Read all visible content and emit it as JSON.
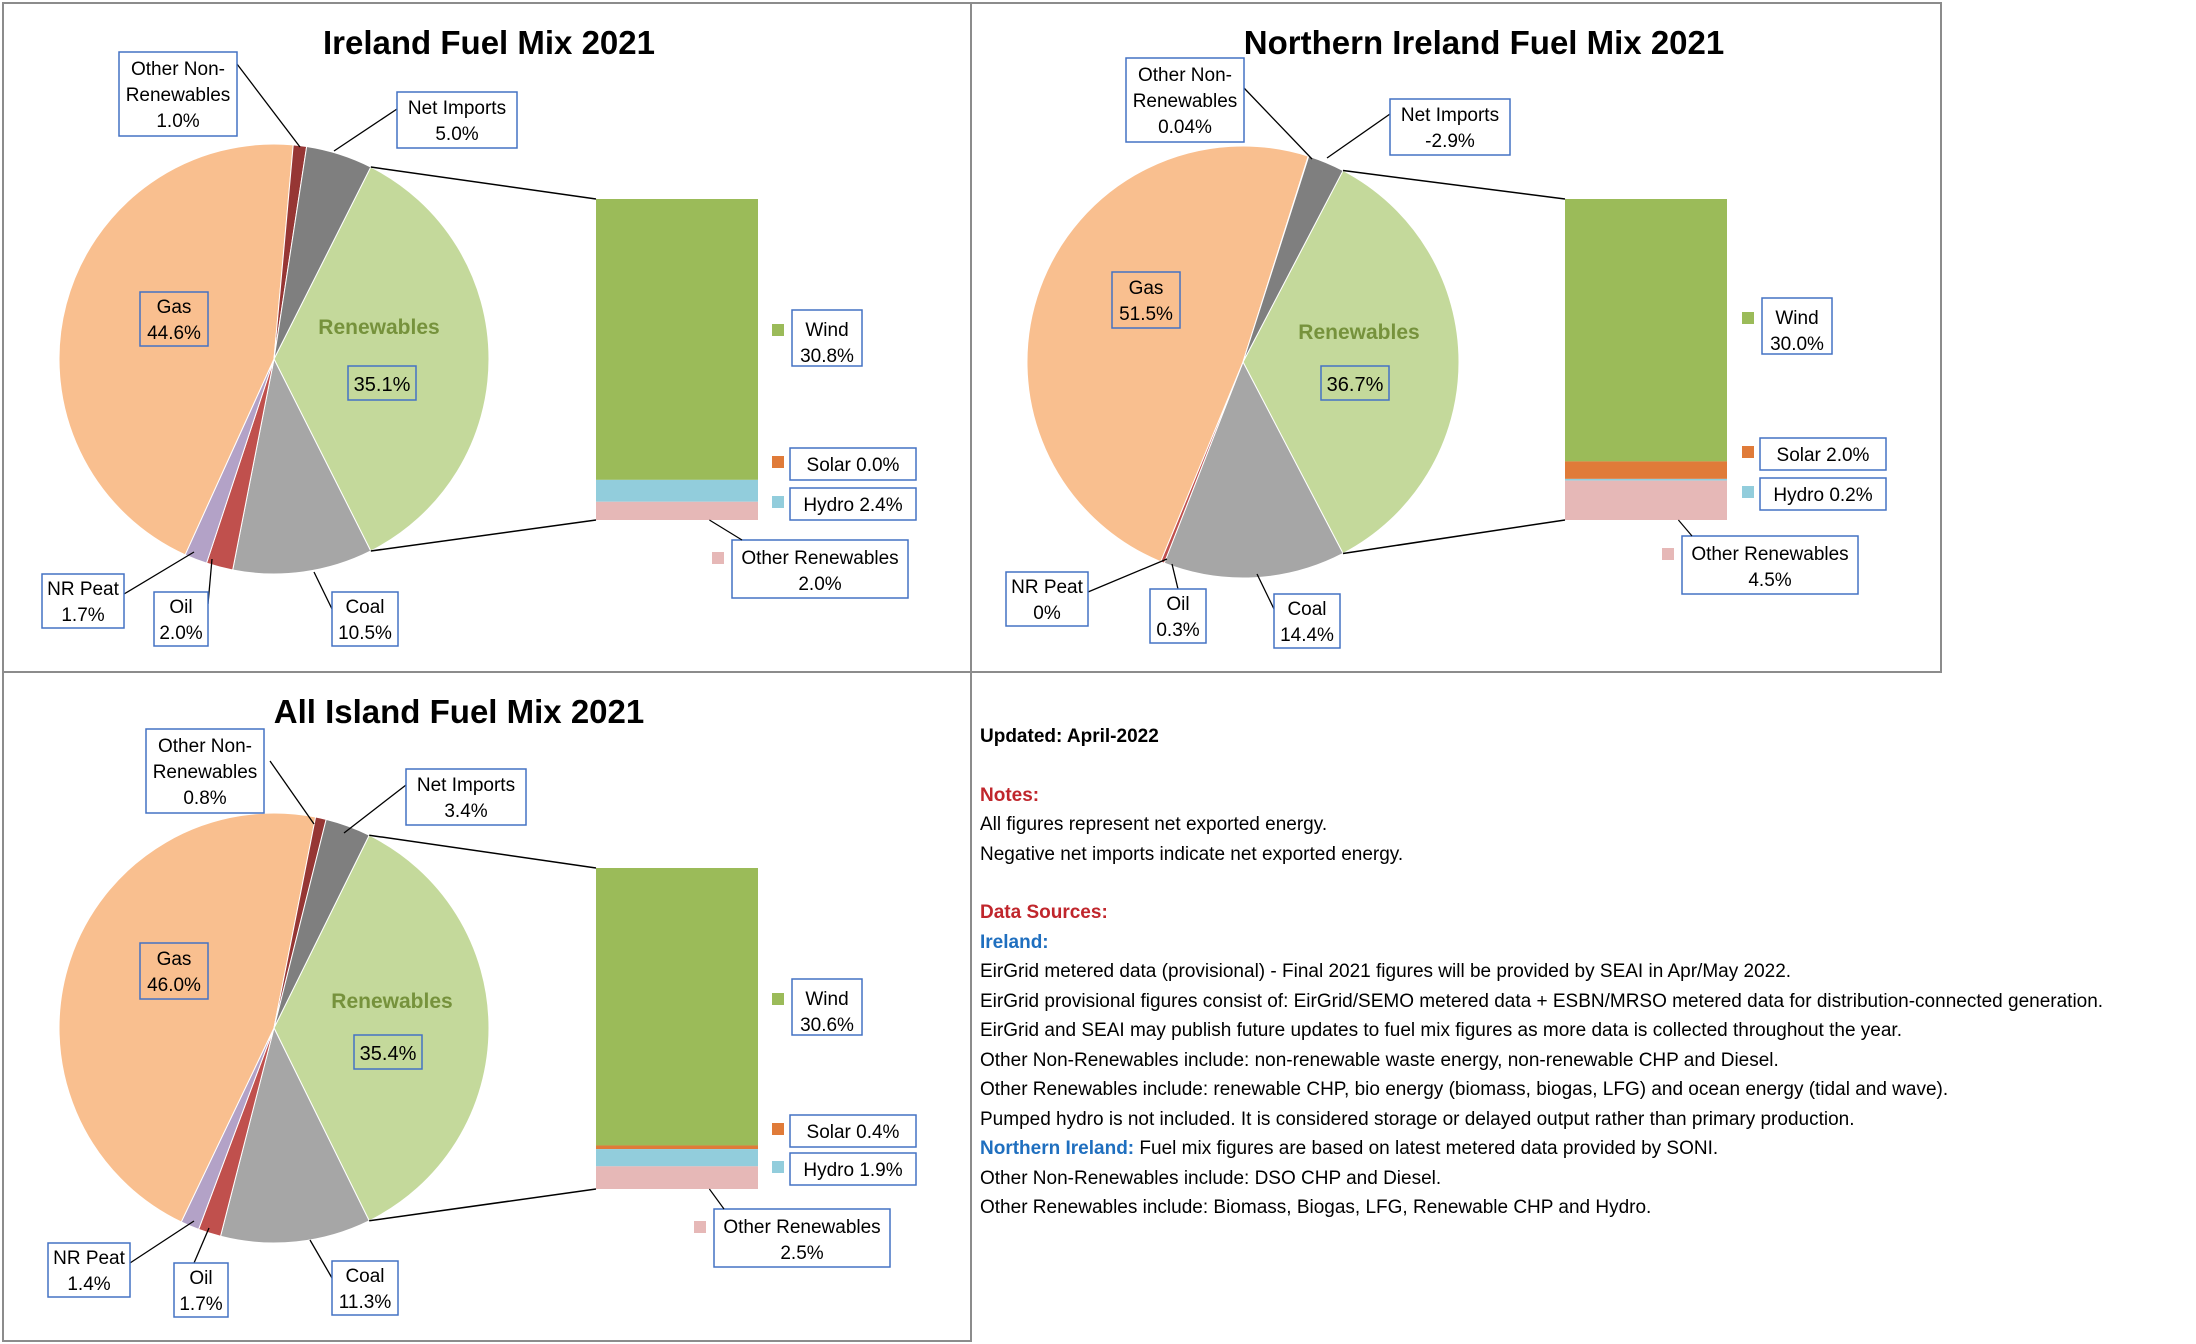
{
  "chart_data": [
    {
      "type": "pie",
      "title": "Ireland Fuel Mix 2021",
      "slices": [
        {
          "label": "Renewables",
          "value": 35.1,
          "display": "35.1%",
          "color": "#c4d99b"
        },
        {
          "label": "Coal",
          "value": 10.5,
          "display": "10.5%",
          "color": "#a6a6a6"
        },
        {
          "label": "Oil",
          "value": 2.0,
          "display": "2.0%",
          "color": "#c0504d"
        },
        {
          "label": "NR Peat",
          "value": 1.7,
          "display": "1.7%",
          "color": "#b3a2c7"
        },
        {
          "label": "Gas",
          "value": 44.6,
          "display": "44.6%",
          "color": "#f9bf8f"
        },
        {
          "label": "Other Non-Renewables",
          "value": 1.0,
          "display": "1.0%",
          "color": "#963634"
        },
        {
          "label": "Net Imports",
          "value": 5.0,
          "display": "5.0%",
          "color": "#7f7f7f"
        }
      ],
      "breakdown": [
        {
          "label": "Wind",
          "value": 30.8,
          "display": "30.8%",
          "color": "#9bbb59"
        },
        {
          "label": "Solar",
          "value": 0.0,
          "display": "0.0%",
          "color": "#e07b39"
        },
        {
          "label": "Hydro",
          "value": 2.4,
          "display": "2.4%",
          "color": "#92cddc"
        },
        {
          "label": "Other Renewables",
          "value": 2.0,
          "display": "2.0%",
          "color": "#e6b8b7"
        }
      ]
    },
    {
      "type": "pie",
      "title": "Northern Ireland Fuel Mix 2021",
      "slices": [
        {
          "label": "Renewables",
          "value": 36.7,
          "display": "36.7%",
          "color": "#c4d99b"
        },
        {
          "label": "Coal",
          "value": 14.4,
          "display": "14.4%",
          "color": "#a6a6a6"
        },
        {
          "label": "Oil",
          "value": 0.3,
          "display": "0.3%",
          "color": "#c0504d"
        },
        {
          "label": "NR Peat",
          "value": 0,
          "display": "0%",
          "color": "#b3a2c7"
        },
        {
          "label": "Gas",
          "value": 51.5,
          "display": "51.5%",
          "color": "#f9bf8f"
        },
        {
          "label": "Other Non-Renewables",
          "value": 0.04,
          "display": "0.04%",
          "color": "#963634"
        },
        {
          "label": "Net Imports",
          "value": -2.9,
          "display": "-2.9%",
          "color": "#7f7f7f"
        }
      ],
      "breakdown": [
        {
          "label": "Wind",
          "value": 30.0,
          "display": "30.0%",
          "color": "#9bbb59"
        },
        {
          "label": "Solar",
          "value": 2.0,
          "display": "2.0%",
          "color": "#e07b39"
        },
        {
          "label": "Hydro",
          "value": 0.2,
          "display": "0.2%",
          "color": "#92cddc"
        },
        {
          "label": "Other Renewables",
          "value": 4.5,
          "display": "4.5%",
          "color": "#e6b8b7"
        }
      ]
    },
    {
      "type": "pie",
      "title": "All Island Fuel Mix 2021",
      "slices": [
        {
          "label": "Renewables",
          "value": 35.4,
          "display": "35.4%",
          "color": "#c4d99b"
        },
        {
          "label": "Coal",
          "value": 11.3,
          "display": "11.3%",
          "color": "#a6a6a6"
        },
        {
          "label": "Oil",
          "value": 1.7,
          "display": "1.7%",
          "color": "#c0504d"
        },
        {
          "label": "NR Peat",
          "value": 1.4,
          "display": "1.4%",
          "color": "#b3a2c7"
        },
        {
          "label": "Gas",
          "value": 46.0,
          "display": "46.0%",
          "color": "#f9bf8f"
        },
        {
          "label": "Other Non-Renewables",
          "value": 0.8,
          "display": "0.8%",
          "color": "#963634"
        },
        {
          "label": "Net Imports",
          "value": 3.4,
          "display": "3.4%",
          "color": "#7f7f7f"
        }
      ],
      "breakdown": [
        {
          "label": "Wind",
          "value": 30.6,
          "display": "30.6%",
          "color": "#9bbb59"
        },
        {
          "label": "Solar",
          "value": 0.4,
          "display": "0.4%",
          "color": "#e07b39"
        },
        {
          "label": "Hydro",
          "value": 1.9,
          "display": "1.9%",
          "color": "#92cddc"
        },
        {
          "label": "Other Renewables",
          "value": 2.5,
          "display": "2.5%",
          "color": "#e6b8b7"
        }
      ]
    }
  ],
  "notes": {
    "updated": "Updated: April-2022",
    "notes_heading": "Notes:",
    "notes_lines": [
      "All figures represent net exported energy.",
      "Negative net imports indicate net exported energy."
    ],
    "sources_heading": "Data Sources:",
    "ireland_heading": "Ireland:",
    "ireland_lines": [
      "EirGrid metered data (provisional) - Final 2021 figures will be provided by SEAI in Apr/May 2022.",
      "EirGrid provisional figures consist of: EirGrid/SEMO metered data + ESBN/MRSO metered data for distribution-connected generation.",
      "EirGrid and SEAI may publish future updates to fuel mix figures as more data is collected throughout the year.",
      "Other Non-Renewables include: non-renewable waste energy, non-renewable CHP and Diesel.",
      "Other Renewables include: renewable CHP, bio energy (biomass, biogas, LFG) and ocean energy (tidal and wave).",
      "Pumped hydro is not included. It is considered storage or delayed output rather than primary production."
    ],
    "ni_heading": "Northern Ireland:",
    "ni_first_line": "Fuel mix figures are based on latest metered data provided by SONI.",
    "ni_lines": [
      "Other Non-Renewables include: DSO CHP and Diesel.",
      "Other Renewables include: Biomass, Biogas, LFG, Renewable CHP and Hydro."
    ]
  }
}
